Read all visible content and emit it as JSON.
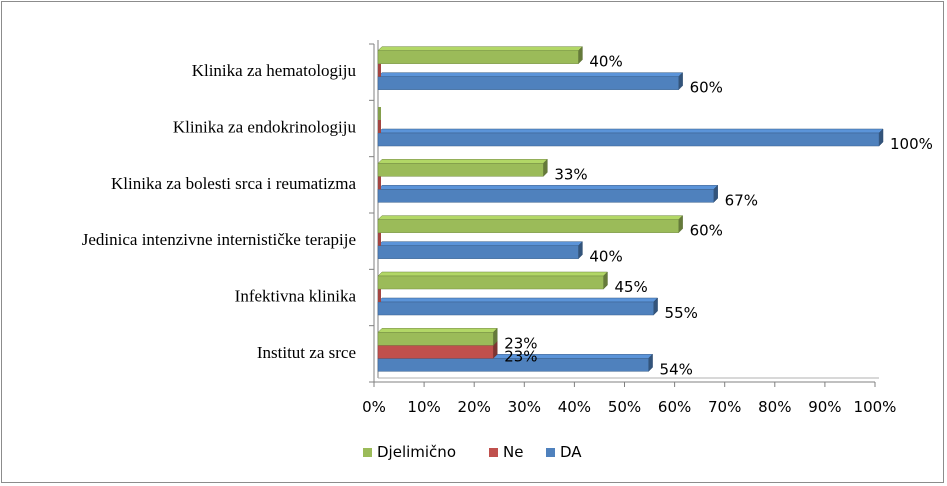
{
  "chart_data": {
    "type": "bar",
    "orientation": "horizontal",
    "style": "3d",
    "categories": [
      "Institut za srce",
      "Infektivna klinika",
      "Jedinica intenzivne internističke terapije",
      "Klinika za bolesti srca i reumatizma",
      "Klinika za endokrinologiju",
      "Klinika za hematologiju"
    ],
    "series": [
      {
        "name": "DA",
        "color": "#4F81BD",
        "values": [
          54,
          55,
          40,
          67,
          100,
          60
        ],
        "labels": [
          "54%",
          "55%",
          "40%",
          "67%",
          "100%",
          "60%"
        ]
      },
      {
        "name": "Ne",
        "color": "#C0504D",
        "values": [
          23,
          0,
          0,
          0,
          0,
          0
        ],
        "labels": [
          "23%",
          "",
          "",
          "",
          "",
          ""
        ]
      },
      {
        "name": "Djelimično",
        "color": "#9BBB59",
        "values": [
          23,
          45,
          60,
          33,
          0,
          40
        ],
        "labels": [
          "23%",
          "45%",
          "60%",
          "33%",
          "",
          "40%"
        ]
      }
    ],
    "xlim": [
      0,
      100
    ],
    "x_ticks": [
      "0%",
      "10%",
      "20%",
      "30%",
      "40%",
      "50%",
      "60%",
      "70%",
      "80%",
      "90%",
      "100%"
    ],
    "legend": {
      "position": "bottom",
      "order": [
        "Djelimično",
        "Ne",
        "DA"
      ]
    },
    "grid": false,
    "title": "",
    "xlabel": "",
    "ylabel": ""
  }
}
